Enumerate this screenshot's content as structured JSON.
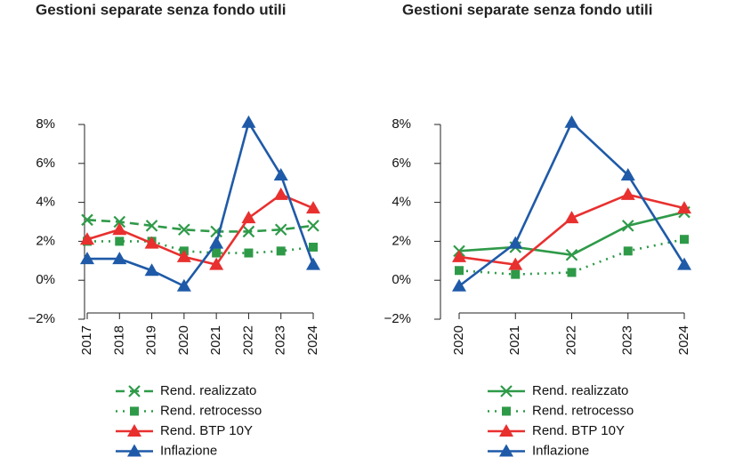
{
  "chart_data": [
    {
      "type": "line",
      "title": "Gestioni separate senza fondo utili",
      "categories": [
        "2017",
        "2018",
        "2019",
        "2020",
        "2021",
        "2022",
        "2023",
        "2024"
      ],
      "series": [
        {
          "name": "Rend. realizzato",
          "color": "#2e9a48",
          "line_style": "dashed",
          "marker": "x",
          "values": [
            3.1,
            3.0,
            2.8,
            2.6,
            2.5,
            2.5,
            2.6,
            2.8
          ]
        },
        {
          "name": "Rend. retrocesso",
          "color": "#2e9a48",
          "line_style": "dotted",
          "marker": "square",
          "values": [
            2.0,
            2.0,
            2.0,
            1.5,
            1.4,
            1.4,
            1.5,
            1.7
          ]
        },
        {
          "name": "Rend. BTP 10Y",
          "color": "#e8302f",
          "line_style": "solid",
          "marker": "triangle",
          "values": [
            2.1,
            2.6,
            1.9,
            1.2,
            0.8,
            3.2,
            4.4,
            3.7
          ]
        },
        {
          "name": "Inflazione",
          "color": "#1f5aa8",
          "line_style": "solid",
          "marker": "triangle",
          "values": [
            1.1,
            1.1,
            0.5,
            -0.3,
            1.9,
            8.1,
            5.4,
            0.8
          ]
        }
      ],
      "ylim": [
        -2,
        8
      ],
      "yticks": [
        {
          "value": -2,
          "label": "−2%"
        },
        {
          "value": 0,
          "label": "0%"
        },
        {
          "value": 2,
          "label": "2%"
        },
        {
          "value": 4,
          "label": "4%"
        },
        {
          "value": 6,
          "label": "6%"
        },
        {
          "value": 8,
          "label": "8%"
        }
      ],
      "legend": "bottom"
    },
    {
      "type": "line",
      "title": "Gestioni separate senza fondo utili",
      "categories": [
        "2020",
        "2021",
        "2022",
        "2023",
        "2024"
      ],
      "series": [
        {
          "name": "Rend. realizzato",
          "color": "#2e9a48",
          "line_style": "solid",
          "marker": "x",
          "values": [
            1.5,
            1.7,
            1.3,
            2.8,
            3.5
          ]
        },
        {
          "name": "Rend. retrocesso",
          "color": "#2e9a48",
          "line_style": "dotted",
          "marker": "square",
          "values": [
            0.5,
            0.3,
            0.4,
            1.5,
            2.1
          ]
        },
        {
          "name": "Rend. BTP 10Y",
          "color": "#e8302f",
          "line_style": "solid",
          "marker": "triangle",
          "values": [
            1.2,
            0.8,
            3.2,
            4.4,
            3.7
          ]
        },
        {
          "name": "Inflazione",
          "color": "#1f5aa8",
          "line_style": "solid",
          "marker": "triangle",
          "values": [
            -0.3,
            1.9,
            8.1,
            5.4,
            0.8
          ]
        }
      ],
      "ylim": [
        -2,
        8
      ],
      "yticks": [
        {
          "value": -2,
          "label": "−2%"
        },
        {
          "value": 0,
          "label": "0%"
        },
        {
          "value": 2,
          "label": "2%"
        },
        {
          "value": 4,
          "label": "4%"
        },
        {
          "value": 6,
          "label": "6%"
        },
        {
          "value": 8,
          "label": "8%"
        }
      ],
      "legend": "bottom"
    }
  ]
}
